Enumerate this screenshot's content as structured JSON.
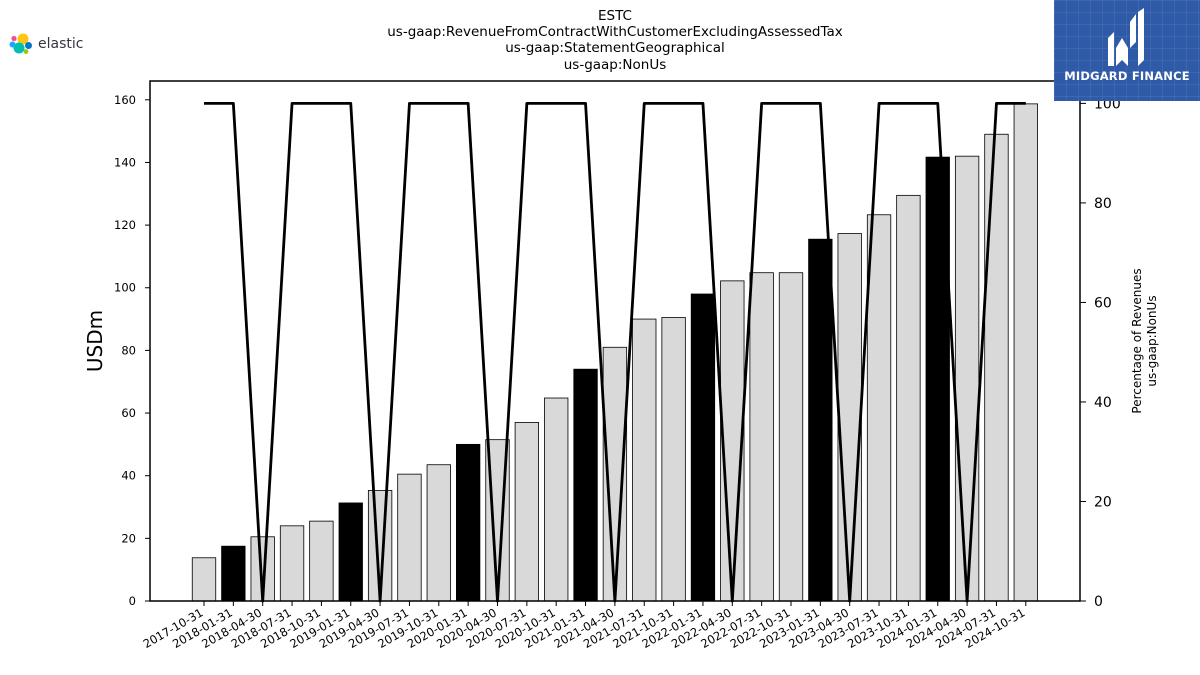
{
  "branding": {
    "logo_text": "elastic",
    "badge_text": "MIDGARD FINANCE"
  },
  "chart_data": {
    "type": "bar",
    "title_lines": [
      "ESTC",
      "us-gaap:RevenueFromContractWithCustomerExcludingAssessedTax",
      "us-gaap:StatementGeographical",
      "us-gaap:NonUs"
    ],
    "ylabel": "USDm",
    "y2label_lines": [
      "Percentage of Revenues",
      "us-gaap:NonUs"
    ],
    "ylim": [
      0,
      166
    ],
    "y2lim": [
      0,
      104.5
    ],
    "yticks": [
      0,
      20,
      40,
      60,
      80,
      100,
      120,
      140,
      160
    ],
    "y2ticks": [
      0,
      20,
      40,
      60,
      80,
      100
    ],
    "categories": [
      "2017-10-31",
      "2018-01-31",
      "2018-04-30",
      "2018-07-31",
      "2018-10-31",
      "2019-01-31",
      "2019-04-30",
      "2019-07-31",
      "2019-10-31",
      "2020-01-31",
      "2020-04-30",
      "2020-07-31",
      "2020-10-31",
      "2021-01-31",
      "2021-04-30",
      "2021-07-31",
      "2021-10-31",
      "2022-01-31",
      "2022-04-30",
      "2022-07-31",
      "2022-10-31",
      "2023-01-31",
      "2023-04-30",
      "2023-07-31",
      "2023-10-31",
      "2024-01-31",
      "2024-04-30",
      "2024-07-31",
      "2024-10-31"
    ],
    "series": [
      {
        "kind": "bar",
        "axis": "left",
        "values": [
          13.8,
          17.5,
          20.5,
          24.0,
          25.5,
          31.3,
          35.3,
          40.5,
          43.5,
          50.0,
          51.5,
          57.0,
          64.8,
          74.0,
          81.0,
          90.0,
          90.5,
          98.0,
          102.2,
          104.8,
          104.8,
          115.5,
          117.3,
          123.3,
          129.5,
          141.7,
          142.0,
          149.0,
          158.7
        ],
        "highlight": [
          false,
          true,
          false,
          false,
          false,
          true,
          false,
          false,
          false,
          true,
          false,
          false,
          false,
          true,
          false,
          false,
          false,
          true,
          false,
          false,
          false,
          true,
          false,
          false,
          false,
          true,
          false,
          false,
          false
        ],
        "color": "#d9d9d9",
        "highlight_color": "#000000",
        "edge_color": "#000000"
      },
      {
        "kind": "line",
        "axis": "right",
        "values": [
          100,
          100,
          0,
          100,
          100,
          100,
          0,
          100,
          100,
          100,
          0,
          100,
          100,
          100,
          0,
          100,
          100,
          100,
          0,
          100,
          100,
          100,
          0,
          100,
          100,
          100,
          0,
          100,
          100
        ],
        "color": "#000000"
      }
    ]
  }
}
